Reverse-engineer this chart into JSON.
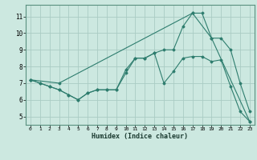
{
  "xlabel": "Humidex (Indice chaleur)",
  "bg_color": "#cce8e0",
  "line_color": "#2e7d6e",
  "grid_color": "#aaccC4",
  "xmin": -0.5,
  "xmax": 23.5,
  "ymin": 4.5,
  "ymax": 11.7,
  "line1_x": [
    0,
    1,
    2,
    3,
    4,
    5,
    6,
    7,
    8,
    9,
    10,
    11,
    12,
    13,
    14,
    15,
    16,
    17,
    18,
    19,
    20,
    21,
    22,
    23
  ],
  "line1_y": [
    7.2,
    7.0,
    6.8,
    6.6,
    6.3,
    6.0,
    6.4,
    6.6,
    6.6,
    6.6,
    7.6,
    8.5,
    8.5,
    8.8,
    7.0,
    7.7,
    8.5,
    8.6,
    8.6,
    8.3,
    8.4,
    6.8,
    5.3,
    4.7
  ],
  "line2_x": [
    0,
    1,
    2,
    3,
    4,
    5,
    6,
    7,
    8,
    9,
    10,
    11,
    12,
    13,
    14,
    15,
    16,
    17,
    18,
    19,
    20,
    21,
    22,
    23
  ],
  "line2_y": [
    7.2,
    7.0,
    6.8,
    6.6,
    6.3,
    6.0,
    6.4,
    6.6,
    6.6,
    6.6,
    7.8,
    8.5,
    8.5,
    8.8,
    9.0,
    9.0,
    10.4,
    11.2,
    11.2,
    9.7,
    9.7,
    9.0,
    7.0,
    5.3
  ],
  "line3_x": [
    0,
    3,
    17,
    19,
    23
  ],
  "line3_y": [
    7.2,
    7.0,
    11.2,
    9.7,
    4.7
  ],
  "xticks": [
    0,
    1,
    2,
    3,
    4,
    5,
    6,
    7,
    8,
    9,
    10,
    11,
    12,
    13,
    14,
    15,
    16,
    17,
    18,
    19,
    20,
    21,
    22,
    23
  ],
  "yticks": [
    5,
    6,
    7,
    8,
    9,
    10,
    11
  ]
}
